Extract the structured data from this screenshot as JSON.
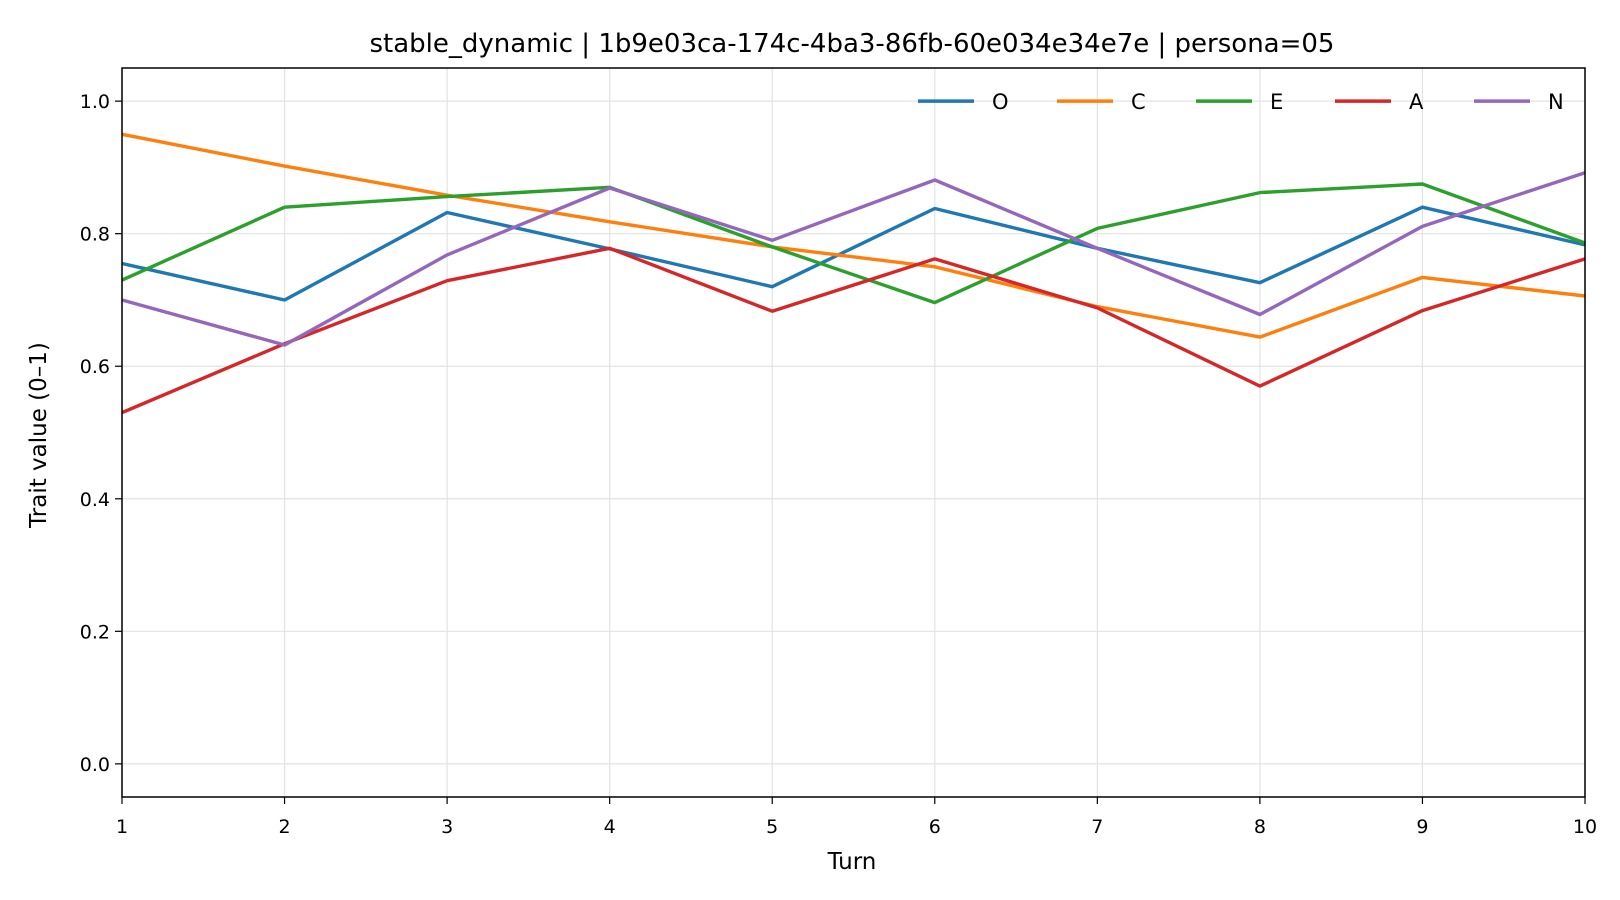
{
  "chart_data": {
    "type": "line",
    "title": "stable_dynamic | 1b9e03ca-174c-4ba3-86fb-60e034e34e7e | persona=05",
    "xlabel": "Turn",
    "ylabel": "Trait value (0–1)",
    "x": [
      1,
      2,
      3,
      4,
      5,
      6,
      7,
      8,
      9,
      10
    ],
    "xlim": [
      1,
      10
    ],
    "ylim": [
      -0.05,
      1.05
    ],
    "xticks": [
      1,
      2,
      3,
      4,
      5,
      6,
      7,
      8,
      9,
      10
    ],
    "yticks": [
      0.0,
      0.2,
      0.4,
      0.6,
      0.8,
      1.0
    ],
    "ytick_labels": [
      "0.0",
      "0.2",
      "0.4",
      "0.6",
      "0.8",
      "1.0"
    ],
    "grid": true,
    "legend_position": "top-right",
    "series": [
      {
        "name": "O",
        "color": "#1f77b4",
        "values": [
          0.755,
          0.7,
          0.832,
          0.777,
          0.72,
          0.838,
          0.778,
          0.726,
          0.84,
          0.783
        ]
      },
      {
        "name": "C",
        "color": "#ff7f0e",
        "values": [
          0.95,
          0.902,
          0.858,
          0.818,
          0.78,
          0.75,
          0.69,
          0.644,
          0.734,
          0.706
        ]
      },
      {
        "name": "E",
        "color": "#2ca02c",
        "values": [
          0.73,
          0.84,
          0.856,
          0.87,
          0.78,
          0.696,
          0.808,
          0.862,
          0.875,
          0.786
        ]
      },
      {
        "name": "A",
        "color": "#d62728",
        "values": [
          0.53,
          0.634,
          0.729,
          0.778,
          0.683,
          0.762,
          0.688,
          0.57,
          0.684,
          0.762
        ]
      },
      {
        "name": "N",
        "color": "#9467bd",
        "values": [
          0.7,
          0.632,
          0.768,
          0.869,
          0.79,
          0.881,
          0.778,
          0.678,
          0.811,
          0.892
        ]
      }
    ]
  }
}
